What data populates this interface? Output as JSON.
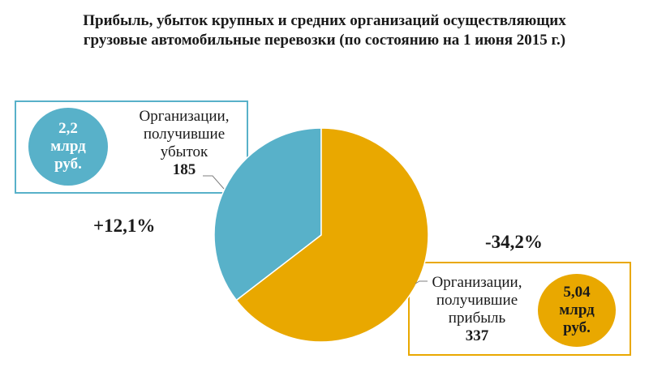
{
  "title_line1": "Прибыль, убыток крупных и средних организаций осуществляющих",
  "title_line2": "грузовые автомобильные перевозки  (по состоянию на 1 июня 2015 г.)",
  "loss": {
    "label_lines": [
      "Организации,",
      "получившие",
      "убыток"
    ],
    "count": "185",
    "amount_lines": [
      "2,2",
      "млрд",
      "руб."
    ],
    "change": "+12,1%",
    "color": "#58b1c9"
  },
  "profit": {
    "label_lines": [
      "Организации,",
      "получившие",
      "прибыль"
    ],
    "count": "337",
    "amount_lines": [
      "5,04",
      "млрд",
      "руб."
    ],
    "change": "-34,2%",
    "color": "#e9a800"
  },
  "chart_data": {
    "type": "pie",
    "categories": [
      "Организации, получившие убыток",
      "Организации, получившие прибыль"
    ],
    "values": [
      185,
      337
    ],
    "colors": [
      "#58b1c9",
      "#e9a800"
    ],
    "start": "12 o'clock",
    "direction": "counterclockwise"
  }
}
